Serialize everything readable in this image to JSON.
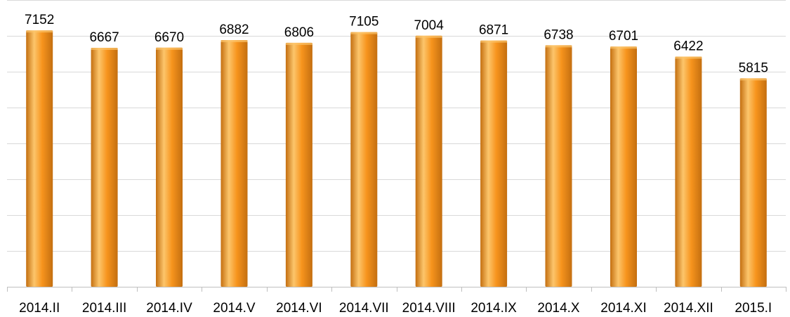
{
  "colors": {
    "bar_light": "#fcc56b",
    "bar_mid": "#f7941d",
    "bar_dark": "#c46f10",
    "grid": "#d9d9d9",
    "axis": "#bfbfbf"
  },
  "chart_data": {
    "type": "bar",
    "title": "",
    "xlabel": "",
    "ylabel": "",
    "categories": [
      "2014.II",
      "2014.III",
      "2014.IV",
      "2014.V",
      "2014.VI",
      "2014.VII",
      "2014.VIII",
      "2014.IX",
      "2014.X",
      "2014.XI",
      "2014.XII",
      "2015.I"
    ],
    "values": [
      7152,
      6667,
      6670,
      6882,
      6806,
      7105,
      7004,
      6871,
      6738,
      6701,
      6422,
      5815
    ],
    "ylim": [
      0,
      8000
    ],
    "gridlines": [
      1000,
      2000,
      3000,
      4000,
      5000,
      6000,
      7000,
      8000
    ],
    "grid": true,
    "legend": "none",
    "data_labels": true
  }
}
